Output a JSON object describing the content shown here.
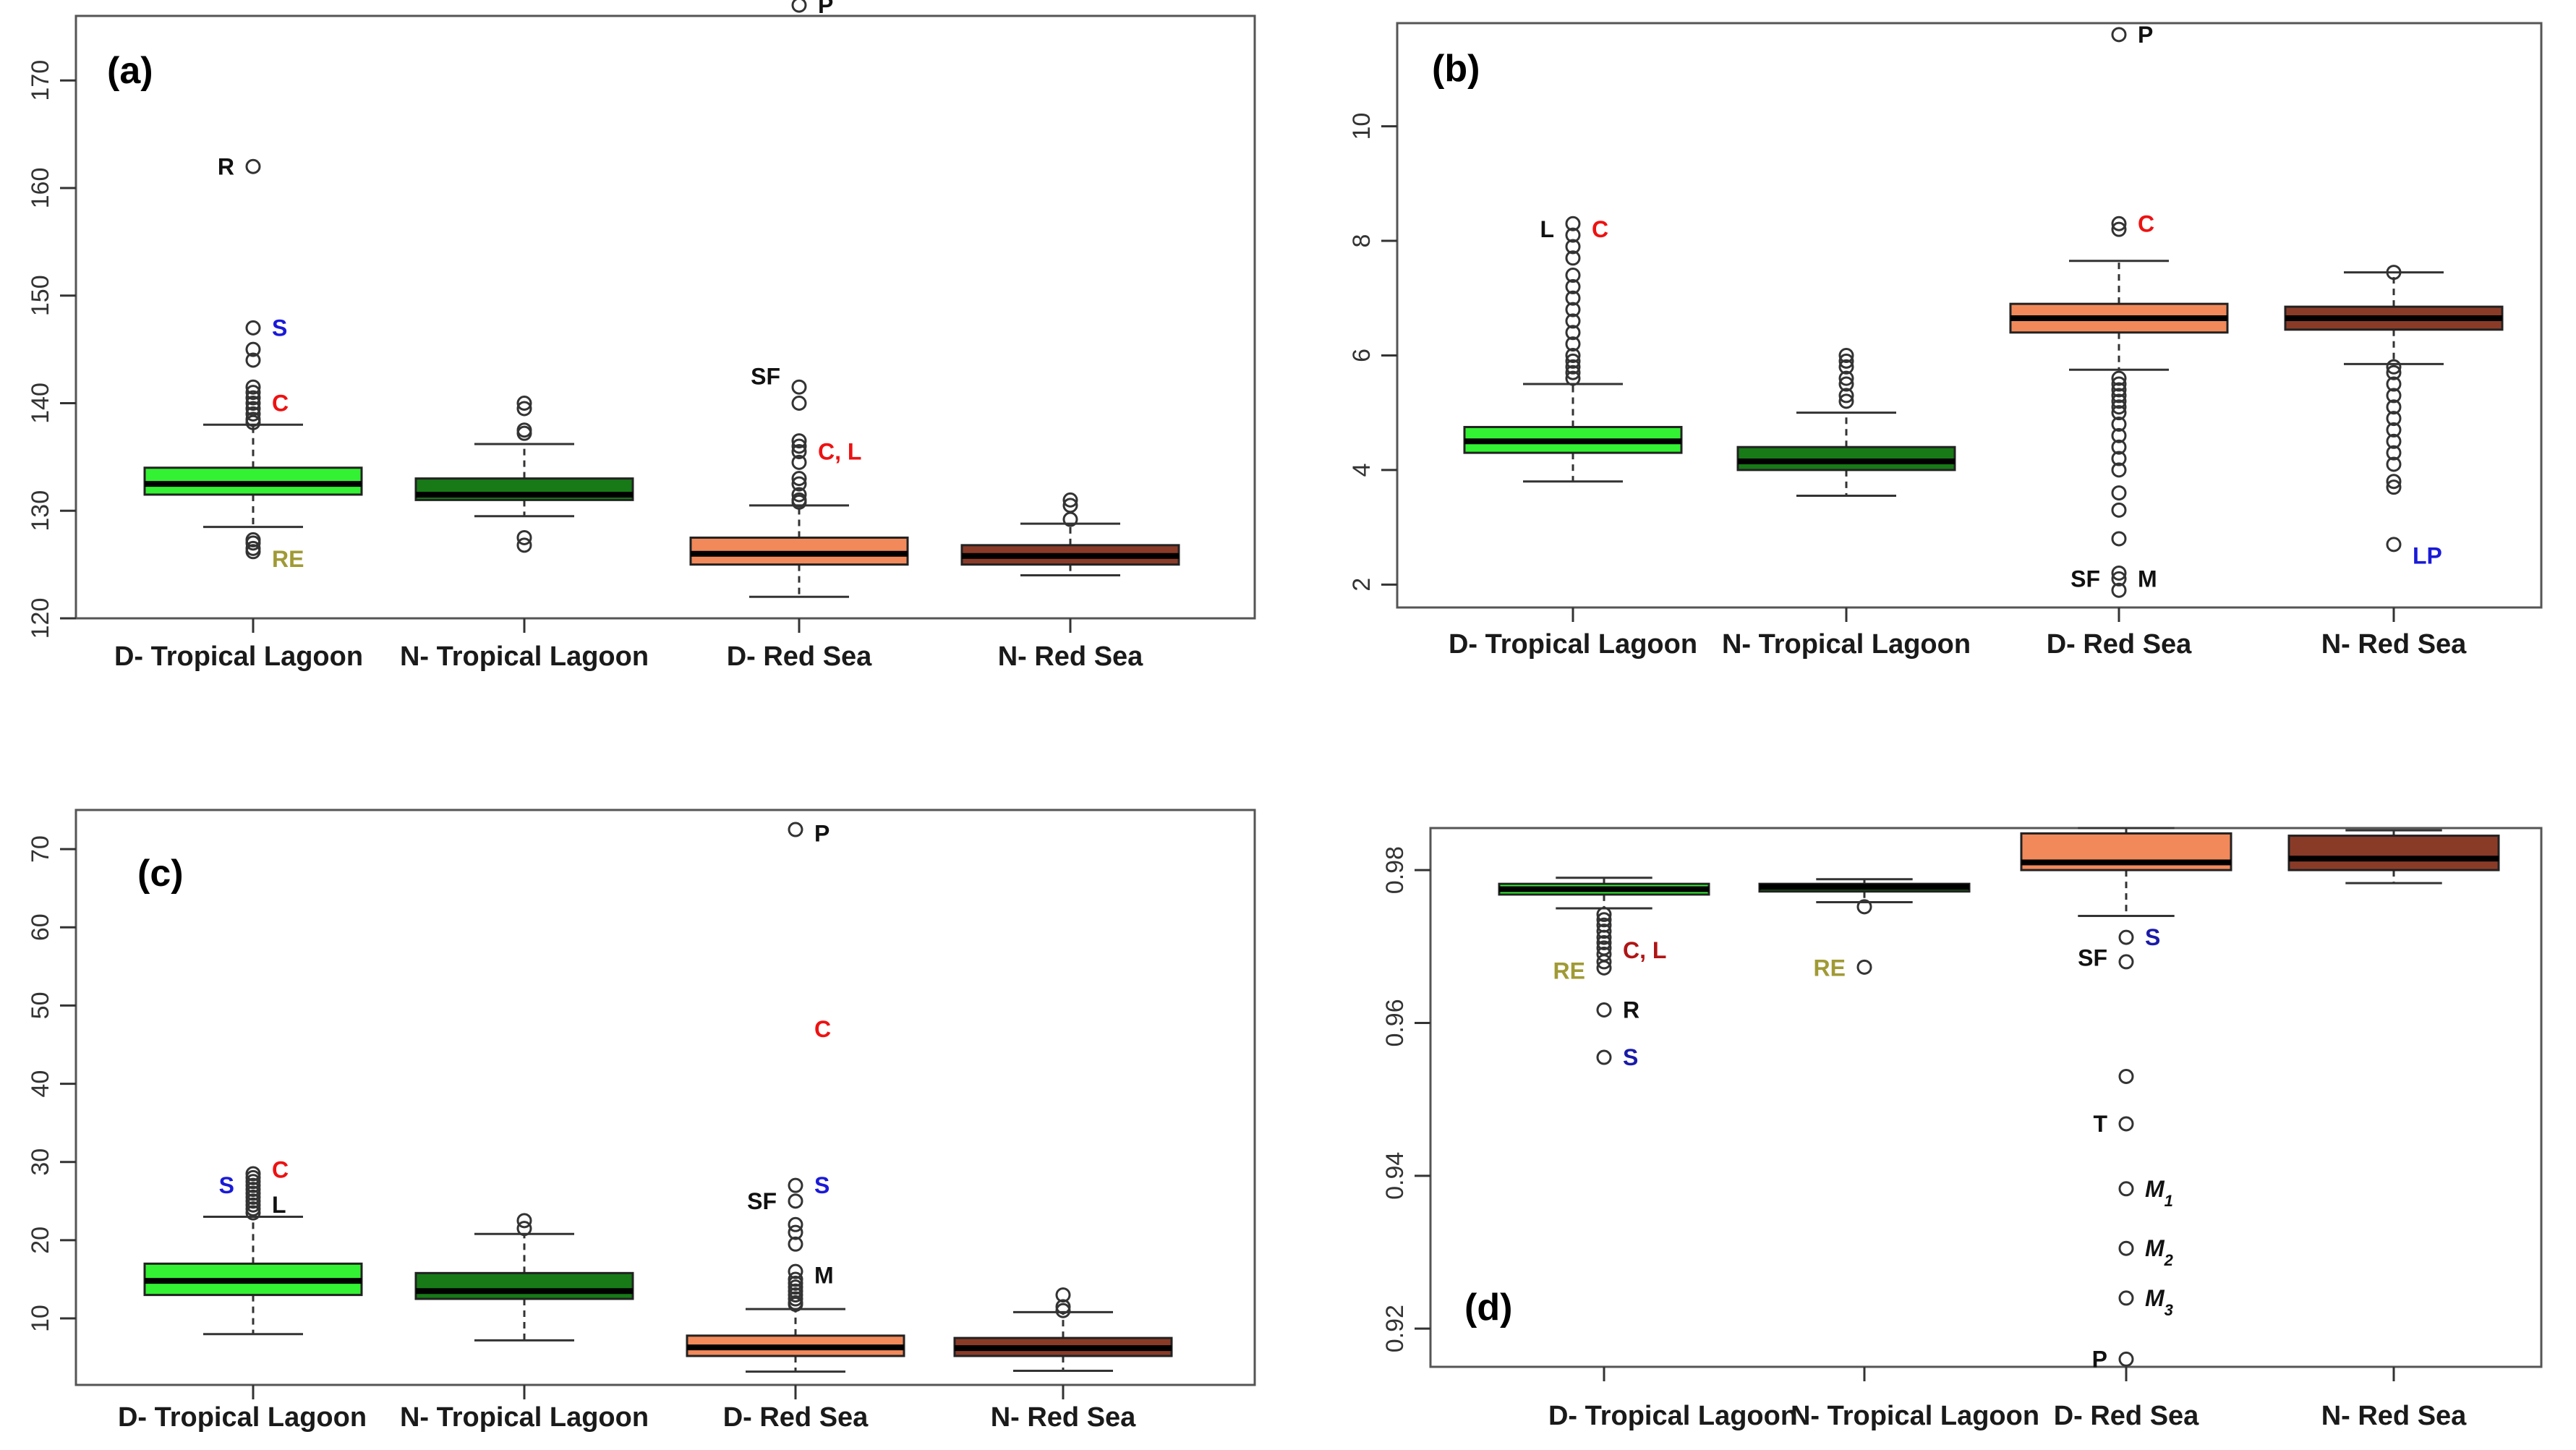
{
  "chart_data": [
    {
      "id": "a",
      "type": "boxplot",
      "panel_label": "(a)",
      "ylim": [
        120,
        176
      ],
      "yticks": [
        120,
        130,
        140,
        150,
        160,
        170
      ],
      "categories": [
        "D- Tropical Lagoon",
        "N- Tropical Lagoon",
        "D- Red Sea",
        "N- Red Sea"
      ],
      "colors": [
        "#33f233",
        "#177a17",
        "#f2895a",
        "#8a3b28"
      ],
      "boxes": [
        {
          "q1": 131.5,
          "median": 132.5,
          "q3": 134,
          "lower": 128.5,
          "upper": 138,
          "outliers": [
            162,
            147,
            145,
            144,
            141.5,
            141,
            140.5,
            140,
            139.5,
            139,
            138.5,
            138.2,
            127.3,
            127,
            126.5,
            126.2
          ]
        },
        {
          "q1": 131,
          "median": 131.5,
          "q3": 133,
          "lower": 129.5,
          "upper": 136.2,
          "outliers": [
            140,
            139.5,
            137.5,
            137.2,
            127.5,
            126.8
          ]
        },
        {
          "q1": 125,
          "median": 126,
          "q3": 127.5,
          "lower": 122,
          "upper": 130.5,
          "outliers": [
            177,
            141.5,
            140,
            136.5,
            136,
            135.5,
            134.5,
            133,
            132.5,
            131.5,
            131,
            130.8
          ]
        },
        {
          "q1": 125,
          "median": 125.8,
          "q3": 126.8,
          "lower": 124,
          "upper": 128.8,
          "outliers": [
            131,
            130.5,
            129.2
          ]
        }
      ],
      "annotations": [
        {
          "text": "P",
          "color": "#111111",
          "cat": 2,
          "y": 177,
          "side": "right"
        },
        {
          "text": "R",
          "color": "#111111",
          "cat": 0,
          "y": 162,
          "side": "left"
        },
        {
          "text": "S",
          "color": "#1a1ad8",
          "cat": 0,
          "y": 147,
          "side": "right"
        },
        {
          "text": "C",
          "color": "#ee1111",
          "cat": 0,
          "y": 140,
          "side": "right"
        },
        {
          "text": "RE",
          "color": "#a09a35",
          "cat": 0,
          "y": 125.5,
          "side": "right"
        },
        {
          "text": "SF",
          "color": "#111111",
          "cat": 2,
          "y": 142.5,
          "side": "left"
        },
        {
          "text": "C, L",
          "color": "#ee1111",
          "cat": 2,
          "y": 135.5,
          "side": "right"
        }
      ]
    },
    {
      "id": "b",
      "type": "boxplot",
      "panel_label": "(b)",
      "ylim": [
        1.6,
        11.8
      ],
      "yticks": [
        2,
        4,
        6,
        8,
        10
      ],
      "categories": [
        "D- Tropical Lagoon",
        "N- Tropical Lagoon",
        "D- Red Sea",
        "N- Red Sea"
      ],
      "colors": [
        "#33f233",
        "#177a17",
        "#f2895a",
        "#8a3b28"
      ],
      "boxes": [
        {
          "q1": 4.3,
          "median": 4.5,
          "q3": 4.75,
          "lower": 3.8,
          "upper": 5.5,
          "outliers": [
            8.3,
            8.1,
            7.9,
            7.7,
            7.4,
            7.2,
            7.0,
            6.8,
            6.6,
            6.4,
            6.2,
            6.0,
            5.9,
            5.8,
            5.7,
            5.6
          ]
        },
        {
          "q1": 4.0,
          "median": 4.15,
          "q3": 4.4,
          "lower": 3.55,
          "upper": 5.0,
          "outliers": [
            6.0,
            5.9,
            5.8,
            5.6,
            5.5,
            5.3,
            5.2
          ]
        },
        {
          "q1": 6.4,
          "median": 6.65,
          "q3": 6.9,
          "lower": 5.75,
          "upper": 7.65,
          "outliers": [
            11.6,
            8.3,
            8.2,
            5.6,
            5.5,
            5.4,
            5.3,
            5.2,
            5.1,
            5.0,
            4.8,
            4.6,
            4.4,
            4.2,
            4.0,
            3.6,
            3.3,
            2.8,
            2.2,
            2.1,
            1.9
          ]
        },
        {
          "q1": 6.45,
          "median": 6.65,
          "q3": 6.85,
          "lower": 5.85,
          "upper": 7.45,
          "outliers": [
            7.45,
            5.8,
            5.7,
            5.5,
            5.3,
            5.1,
            4.9,
            4.7,
            4.5,
            4.3,
            4.1,
            3.8,
            3.7,
            2.7
          ]
        }
      ],
      "annotations": [
        {
          "text": "P",
          "color": "#111111",
          "cat": 2,
          "y": 11.6,
          "side": "right"
        },
        {
          "text": "L",
          "color": "#111111",
          "cat": 0,
          "y": 8.2,
          "side": "left"
        },
        {
          "text": "C",
          "color": "#ee1111",
          "cat": 0,
          "y": 8.2,
          "side": "right"
        },
        {
          "text": "C",
          "color": "#ee1111",
          "cat": 2,
          "y": 8.3,
          "side": "right"
        },
        {
          "text": "SF",
          "color": "#111111",
          "cat": 2,
          "y": 2.1,
          "side": "left"
        },
        {
          "text": "M",
          "color": "#111111",
          "cat": 2,
          "y": 2.1,
          "side": "right"
        },
        {
          "text": "LP",
          "color": "#1a1ad8",
          "cat": 3,
          "y": 2.5,
          "side": "right"
        }
      ]
    },
    {
      "id": "c",
      "type": "boxplot",
      "panel_label": "(c)",
      "ylim": [
        1.5,
        75
      ],
      "yticks": [
        10,
        20,
        30,
        40,
        50,
        60,
        70
      ],
      "categories": [
        "D- Tropical Lagoon",
        "N- Tropical Lagoon",
        "D- Red Sea",
        "N- Red Sea"
      ],
      "colors": [
        "#33f233",
        "#177a17",
        "#f2895a",
        "#8a3b28"
      ],
      "boxes": [
        {
          "q1": 13,
          "median": 14.8,
          "q3": 17,
          "lower": 8,
          "upper": 23,
          "outliers": [
            28.5,
            28,
            27.5,
            27,
            26.5,
            26,
            25.5,
            25,
            24.5,
            24,
            23.5
          ]
        },
        {
          "q1": 12.5,
          "median": 13.5,
          "q3": 15.8,
          "lower": 7.2,
          "upper": 20.8,
          "outliers": [
            22.5,
            21.5
          ]
        },
        {
          "q1": 5.2,
          "median": 6.3,
          "q3": 7.8,
          "lower": 3.2,
          "upper": 11.2,
          "outliers": [
            72.5,
            27,
            25,
            22,
            21,
            19.5,
            16,
            15,
            14.5,
            14,
            13.5,
            13,
            12.5,
            12,
            11.8
          ]
        },
        {
          "q1": 5.2,
          "median": 6.2,
          "q3": 7.5,
          "lower": 3.3,
          "upper": 10.8,
          "outliers": [
            13,
            11.5,
            11
          ]
        }
      ],
      "annotations": [
        {
          "text": "P",
          "color": "#111111",
          "cat": 2,
          "y": 72,
          "side": "right"
        },
        {
          "text": "C",
          "color": "#ee1111",
          "cat": 2,
          "y": 47,
          "side": "right"
        },
        {
          "text": "S",
          "color": "#1a1ad8",
          "cat": 0,
          "y": 27,
          "side": "left"
        },
        {
          "text": "C",
          "color": "#ee1111",
          "cat": 0,
          "y": 29,
          "side": "right"
        },
        {
          "text": "L",
          "color": "#111111",
          "cat": 0,
          "y": 24.5,
          "side": "right"
        },
        {
          "text": "SF",
          "color": "#111111",
          "cat": 2,
          "y": 25,
          "side": "left"
        },
        {
          "text": "S",
          "color": "#1a1ad8",
          "cat": 2,
          "y": 27,
          "side": "right"
        },
        {
          "text": "M",
          "color": "#111111",
          "cat": 2,
          "y": 15.5,
          "side": "right"
        }
      ]
    },
    {
      "id": "d",
      "type": "boxplot",
      "panel_label": "(d)",
      "ylim": [
        0.915,
        0.9855
      ],
      "yticks": [
        0.92,
        0.94,
        0.96,
        0.98
      ],
      "categories": [
        "D- Tropical Lagoon",
        "N- Tropical Lagoon",
        "D- Red Sea",
        "N- Red Sea"
      ],
      "colors": [
        "#33f233",
        "#177a17",
        "#f2895a",
        "#8a3b28"
      ],
      "boxes": [
        {
          "q1": 0.9768,
          "median": 0.9775,
          "q3": 0.9782,
          "lower": 0.975,
          "upper": 0.979,
          "outliers": [
            0.9742,
            0.9735,
            0.9728,
            0.972,
            0.9712,
            0.9705,
            0.9698,
            0.969,
            0.968,
            0.9672,
            0.9617,
            0.9555
          ]
        },
        {
          "q1": 0.9772,
          "median": 0.9778,
          "q3": 0.9782,
          "lower": 0.9758,
          "upper": 0.9788,
          "outliers": [
            0.9752,
            0.9673
          ]
        },
        {
          "q1": 0.98,
          "median": 0.981,
          "q3": 0.9848,
          "lower": 0.974,
          "upper": 0.9855,
          "outliers": [
            0.9712,
            0.968,
            0.953,
            0.9468,
            0.9383,
            0.9305,
            0.924,
            0.916
          ]
        },
        {
          "q1": 0.98,
          "median": 0.9815,
          "q3": 0.9845,
          "lower": 0.9783,
          "upper": 0.9852,
          "outliers": []
        }
      ],
      "annotations": [
        {
          "text": "C, L",
          "color": "#b01515",
          "cat": 0,
          "y": 0.9695,
          "side": "right"
        },
        {
          "text": "RE",
          "color": "#a09a35",
          "cat": 0,
          "y": 0.9668,
          "side": "left"
        },
        {
          "text": "R",
          "color": "#111111",
          "cat": 0,
          "y": 0.9617,
          "side": "right"
        },
        {
          "text": "S",
          "color": "#1a1aa8",
          "cat": 0,
          "y": 0.9555,
          "side": "right"
        },
        {
          "text": "RE",
          "color": "#a09a35",
          "cat": 1,
          "y": 0.9672,
          "side": "left"
        },
        {
          "text": "S",
          "color": "#1a1aa8",
          "cat": 2,
          "y": 0.9712,
          "side": "right"
        },
        {
          "text": "SF",
          "color": "#111111",
          "cat": 2,
          "y": 0.9685,
          "side": "left"
        },
        {
          "text": "T",
          "color": "#111111",
          "cat": 2,
          "y": 0.9468,
          "side": "left"
        },
        {
          "text": "M1",
          "color": "#111111",
          "cat": 2,
          "y": 0.9383,
          "side": "right"
        },
        {
          "text": "M2",
          "color": "#111111",
          "cat": 2,
          "y": 0.9305,
          "side": "right"
        },
        {
          "text": "M3",
          "color": "#111111",
          "cat": 2,
          "y": 0.924,
          "side": "right"
        },
        {
          "text": "P",
          "color": "#111111",
          "cat": 2,
          "y": 0.916,
          "side": "left"
        }
      ]
    }
  ]
}
